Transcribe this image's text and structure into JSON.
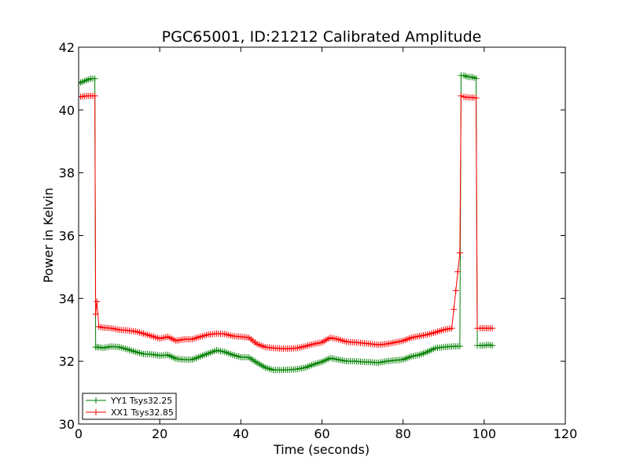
{
  "chart_data": {
    "type": "line",
    "title": "PGC65001, ID:21212 Calibrated Amplitude",
    "xlabel": "Time (seconds)",
    "ylabel": "Power in Kelvin",
    "xlim": [
      0,
      120
    ],
    "ylim": [
      30,
      42
    ],
    "x_ticks": [
      0,
      20,
      40,
      60,
      80,
      100,
      120
    ],
    "y_ticks": [
      30,
      32,
      34,
      36,
      38,
      40,
      42
    ],
    "grid": false,
    "legend_position": "lower-left",
    "series": [
      {
        "name": "YY1 Tsys32.25",
        "color": "#008000",
        "marker": "+",
        "x": [
          0,
          1,
          2,
          3,
          4,
          4.2,
          5,
          6,
          8,
          10,
          12,
          14,
          16,
          18,
          20,
          22,
          24,
          26,
          28,
          30,
          32,
          34,
          36,
          38,
          40,
          42,
          44,
          46,
          48,
          50,
          52,
          54,
          56,
          58,
          60,
          62,
          64,
          66,
          68,
          70,
          72,
          74,
          76,
          78,
          80,
          82,
          84,
          86,
          88,
          90,
          92,
          94,
          94.3,
          95,
          96,
          97,
          98,
          98.3,
          99,
          100,
          101,
          102
        ],
        "y": [
          40.85,
          40.9,
          40.95,
          41.0,
          41.0,
          32.45,
          32.45,
          32.42,
          32.47,
          32.45,
          32.38,
          32.3,
          32.23,
          32.22,
          32.18,
          32.2,
          32.08,
          32.05,
          32.05,
          32.15,
          32.25,
          32.35,
          32.3,
          32.2,
          32.13,
          32.12,
          31.95,
          31.8,
          31.72,
          31.72,
          31.73,
          31.75,
          31.8,
          31.9,
          31.98,
          32.1,
          32.05,
          32.0,
          32.0,
          31.98,
          31.97,
          31.95,
          32.0,
          32.03,
          32.05,
          32.15,
          32.2,
          32.3,
          32.42,
          32.45,
          32.47,
          32.48,
          41.1,
          41.1,
          41.05,
          41.05,
          41.0,
          32.5,
          32.5,
          32.5,
          32.52,
          32.5
        ]
      },
      {
        "name": "XX1 Tsys32.85",
        "color": "#ff0000",
        "marker": "+",
        "x": [
          0,
          1,
          2,
          3,
          4,
          4.2,
          4.5,
          5,
          6,
          8,
          10,
          12,
          14,
          16,
          18,
          20,
          22,
          24,
          26,
          28,
          30,
          32,
          34,
          36,
          38,
          40,
          42,
          44,
          46,
          48,
          50,
          52,
          54,
          56,
          58,
          60,
          62,
          64,
          66,
          68,
          70,
          72,
          74,
          76,
          78,
          80,
          82,
          84,
          86,
          88,
          90,
          92,
          94,
          94.3,
          95,
          96,
          97,
          98,
          98.3,
          99,
          100,
          101,
          102
        ],
        "y": [
          40.42,
          40.43,
          40.45,
          40.45,
          40.45,
          33.5,
          33.9,
          33.1,
          33.07,
          33.05,
          33.0,
          32.98,
          32.95,
          32.88,
          32.8,
          32.72,
          32.78,
          32.65,
          32.7,
          32.7,
          32.78,
          32.85,
          32.88,
          32.87,
          32.8,
          32.78,
          32.75,
          32.55,
          32.45,
          32.42,
          32.4,
          32.4,
          32.42,
          32.48,
          32.55,
          32.6,
          32.75,
          32.7,
          32.62,
          32.6,
          32.58,
          32.55,
          32.52,
          32.55,
          32.6,
          32.65,
          32.75,
          32.8,
          32.85,
          32.92,
          33.0,
          33.05,
          35.45,
          40.45,
          40.42,
          40.4,
          40.4,
          40.38,
          33.05,
          33.05,
          33.05,
          33.05,
          33.05
        ]
      }
    ]
  }
}
